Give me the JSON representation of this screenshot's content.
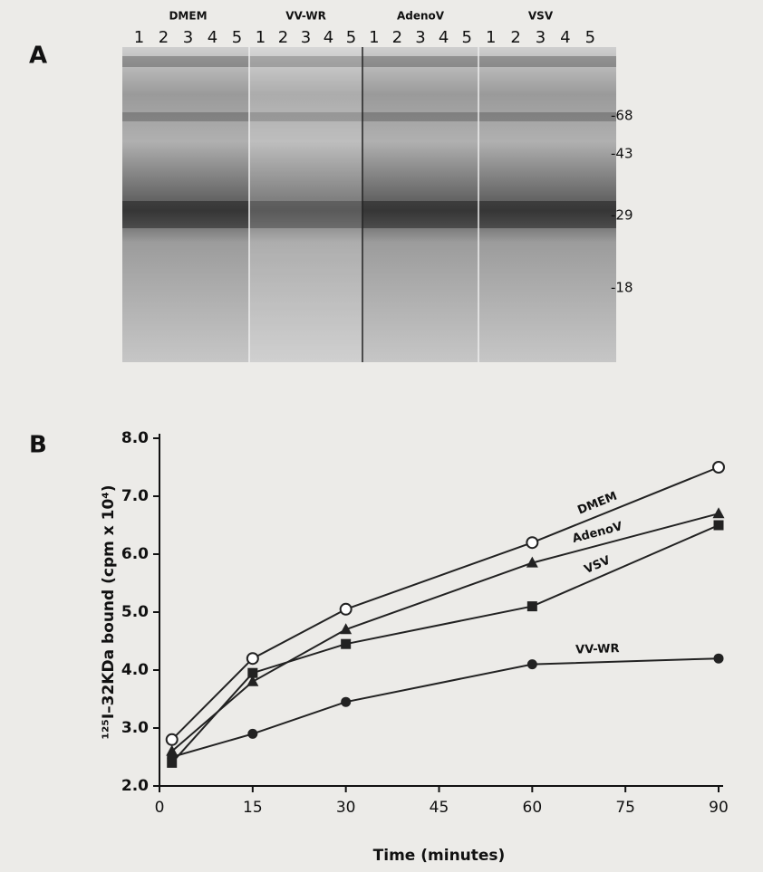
{
  "gel": {
    "panel_label": "A",
    "lanes": [
      {
        "label": "DMEM",
        "numbers": [
          1,
          2,
          3,
          4,
          5
        ]
      },
      {
        "label": "VV-WR",
        "numbers": [
          1,
          2,
          3,
          4,
          5
        ]
      },
      {
        "label": "AdenoV",
        "numbers": [
          1,
          2,
          3,
          4,
          5
        ]
      },
      {
        "label": "VSV",
        "numbers": [
          1,
          2,
          3,
          4,
          5
        ]
      }
    ],
    "markers": [
      "-68",
      "-43",
      "-29",
      "-18"
    ]
  },
  "chart_data": {
    "type": "line",
    "panel_label": "B",
    "x_label": "Time (minutes)",
    "y_label": "¹²⁵I–32KDa bound (cpm x 10⁴)",
    "x": [
      2,
      15,
      30,
      60,
      90
    ],
    "series": [
      {
        "name": "DMEM",
        "color": "#222222",
        "marker": "open-circle",
        "values": [
          2.8,
          4.2,
          5.05,
          6.2,
          7.5
        ]
      },
      {
        "name": "AdenoV",
        "color": "#222222",
        "marker": "triangle",
        "values": [
          2.6,
          3.8,
          4.7,
          5.85,
          6.7
        ]
      },
      {
        "name": "VSV",
        "color": "#222222",
        "marker": "square",
        "values": [
          2.4,
          3.95,
          4.45,
          5.1,
          6.5
        ]
      },
      {
        "name": "VV-WR",
        "color": "#222222",
        "marker": "filled-circle",
        "values": [
          2.5,
          2.9,
          3.45,
          4.1,
          4.2
        ]
      }
    ],
    "xlim": [
      0,
      90
    ],
    "xticks": [
      0,
      15,
      30,
      45,
      60,
      75,
      90
    ],
    "ylim": [
      2,
      8
    ],
    "yticks": [
      {
        "value": 2,
        "label": "2.0"
      },
      {
        "value": 3,
        "label": "3.0"
      },
      {
        "value": 4,
        "label": "4.0"
      },
      {
        "value": 5,
        "label": "5.0"
      },
      {
        "value": 6,
        "label": "6.0"
      },
      {
        "value": 7,
        "label": "7.0"
      },
      {
        "value": 8,
        "label": "8.0"
      }
    ],
    "grid": false
  }
}
